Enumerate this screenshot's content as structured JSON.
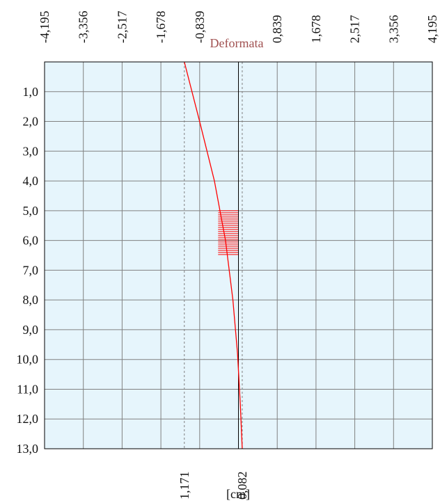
{
  "chart_data": {
    "type": "line",
    "title": "Deformata",
    "unit_label": "[cm]",
    "x_tick_labels": [
      "-4,195",
      "-3,356",
      "-2,517",
      "-1,678",
      "-0,839",
      "0",
      "0,839",
      "1,678",
      "2,517",
      "3,356",
      "4,195"
    ],
    "x_tick_values": [
      -4.195,
      -3.356,
      -2.517,
      -1.678,
      -0.839,
      0,
      0.839,
      1.678,
      2.517,
      3.356,
      4.195
    ],
    "xlim": [
      -4.195,
      4.195
    ],
    "y_tick_labels": [
      "1,0",
      "2,0",
      "3,0",
      "4,0",
      "5,0",
      "6,0",
      "7,0",
      "8,0",
      "9,0",
      "10,0",
      "11,0",
      "12,0",
      "13,0"
    ],
    "y_tick_values": [
      1,
      2,
      3,
      4,
      5,
      6,
      7,
      8,
      9,
      10,
      11,
      12,
      13
    ],
    "ylim": [
      0,
      13
    ],
    "y_inverted": true,
    "grid": true,
    "series": [
      {
        "color": "#ff0000",
        "points": [
          {
            "x": -1.171,
            "y": 0
          },
          {
            "x": -0.84,
            "y": 2
          },
          {
            "x": -0.52,
            "y": 4
          },
          {
            "x": -0.28,
            "y": 6
          },
          {
            "x": -0.12,
            "y": 8
          },
          {
            "x": -0.02,
            "y": 9.8
          },
          {
            "x": 0.04,
            "y": 11.5
          },
          {
            "x": 0.082,
            "y": 13
          }
        ]
      }
    ],
    "hatch_band": {
      "y_from": 5.0,
      "y_to": 6.5,
      "x_from": -0.44,
      "x_to": 0,
      "color": "#ff0000"
    },
    "reference_lines": [
      {
        "x": -1.171,
        "label": "1,171",
        "style": "dashed"
      },
      {
        "x": 0.082,
        "label": "0,082",
        "style": "dashed"
      }
    ],
    "zero_line": {
      "x": 0,
      "color": "#000000"
    },
    "colors": {
      "plot_background": "#e6f5fc",
      "grid": "#808080",
      "title": "#a05050",
      "frame": "#000000"
    }
  }
}
